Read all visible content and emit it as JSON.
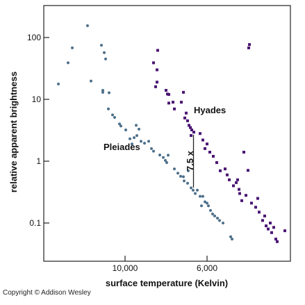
{
  "chart_data": {
    "type": "scatter",
    "xlabel": "surface temperature (Kelvin)",
    "ylabel": "relative apparent brightness",
    "x_ticks": [
      "10,000",
      "6,000"
    ],
    "y_ticks": [
      "100",
      "10",
      "1",
      "0.1"
    ],
    "y_scale": "log",
    "y_tick_values": [
      100,
      10,
      1,
      0.1
    ],
    "grid": false,
    "legend": "none",
    "series": [
      {
        "name": "Pleiades",
        "color": "#4d6f8a",
        "marker": "circle",
        "points": [
          [
            84,
            17.7
          ],
          [
            98,
            39
          ],
          [
            104,
            68
          ],
          [
            126,
            155
          ],
          [
            131,
            19.8
          ],
          [
            146,
            75
          ],
          [
            150,
            57
          ],
          [
            152,
            45
          ],
          [
            148,
            14
          ],
          [
            157,
            12.8
          ],
          [
            156,
            7
          ],
          [
            148,
            13
          ],
          [
            162,
            5.6
          ],
          [
            165,
            5.1
          ],
          [
            172,
            4
          ],
          [
            174,
            3.7
          ],
          [
            181,
            3.2
          ],
          [
            187,
            2.3
          ],
          [
            190,
            1.9
          ],
          [
            193,
            2.4
          ],
          [
            197,
            2.6
          ],
          [
            196,
            3.8
          ],
          [
            200,
            3.3
          ],
          [
            203,
            2.1
          ],
          [
            208,
            1.95
          ],
          [
            214,
            2.1
          ],
          [
            218,
            1.6
          ],
          [
            221,
            1.45
          ],
          [
            230,
            1.26
          ],
          [
            235,
            1.15
          ],
          [
            238,
            1.03
          ],
          [
            240,
            0.95
          ],
          [
            242,
            1.25
          ],
          [
            251,
            0.75
          ],
          [
            256,
            0.64
          ],
          [
            260,
            0.57
          ],
          [
            264,
            0.56
          ],
          [
            265,
            0.48
          ],
          [
            270,
            0.44
          ],
          [
            271,
            0.7
          ],
          [
            275,
            0.37
          ],
          [
            278,
            0.34
          ],
          [
            281,
            0.3
          ],
          [
            284,
            0.34
          ],
          [
            288,
            0.27
          ],
          [
            290,
            0.19
          ],
          [
            292,
            0.27
          ],
          [
            295,
            0.22
          ],
          [
            298,
            0.21
          ],
          [
            300,
            0.19
          ],
          [
            303,
            0.16
          ],
          [
            306,
            0.14
          ],
          [
            309,
            0.13
          ],
          [
            313,
            0.12
          ],
          [
            316,
            0.11
          ],
          [
            321,
            0.1
          ],
          [
            332,
            0.06
          ],
          [
            334,
            0.055
          ]
        ]
      },
      {
        "name": "Hyades",
        "color": "#4b1673",
        "marker": "square",
        "points": [
          [
            221,
            39
          ],
          [
            226,
            30
          ],
          [
            227,
            62
          ],
          [
            224,
            16
          ],
          [
            226,
            19
          ],
          [
            239,
            14
          ],
          [
            241,
            12.2
          ],
          [
            243,
            12
          ],
          [
            243,
            8.7
          ],
          [
            249,
            9
          ],
          [
            251,
            7
          ],
          [
            261,
            9
          ],
          [
            264,
            13
          ],
          [
            266,
            5
          ],
          [
            268,
            6
          ],
          [
            270,
            4.5
          ],
          [
            272,
            3.8
          ],
          [
            274,
            3.5
          ],
          [
            276,
            3.2
          ],
          [
            279,
            2.95
          ],
          [
            275,
            2.6
          ],
          [
            288,
            2.8
          ],
          [
            292,
            2.2
          ],
          [
            295,
            1.6
          ],
          [
            298,
            1.9
          ],
          [
            302,
            1.4
          ],
          [
            307,
            1.2
          ],
          [
            312,
            0.95
          ],
          [
            317,
            0.7
          ],
          [
            324,
            0.75
          ],
          [
            327,
            0.6
          ],
          [
            330,
            0.5
          ],
          [
            336,
            0.4
          ],
          [
            340,
            0.45
          ],
          [
            344,
            0.35
          ],
          [
            342,
            0.5
          ],
          [
            345,
            0.3
          ],
          [
            351,
            1.4
          ],
          [
            348,
            0.23
          ],
          [
            354,
            0.28
          ],
          [
            357,
            0.71
          ],
          [
            358,
            68
          ],
          [
            359,
            77
          ],
          [
            362,
            0.21
          ],
          [
            368,
            0.18
          ],
          [
            371,
            0.25
          ],
          [
            373,
            0.15
          ],
          [
            378,
            0.11
          ],
          [
            381,
            0.13
          ],
          [
            383,
            0.09
          ],
          [
            386,
            0.08
          ],
          [
            389,
            0.1
          ],
          [
            391,
            0.07
          ],
          [
            394,
            0.085
          ],
          [
            397,
            0.055
          ],
          [
            399,
            0.05
          ],
          [
            410,
            0.075
          ]
        ]
      }
    ],
    "annotations": [
      {
        "text": "Pleiades"
      },
      {
        "text": "Hyades"
      },
      {
        "text": "7.5 x"
      }
    ]
  },
  "footer": {
    "copyright": "Copyright © Addison Wesley"
  }
}
